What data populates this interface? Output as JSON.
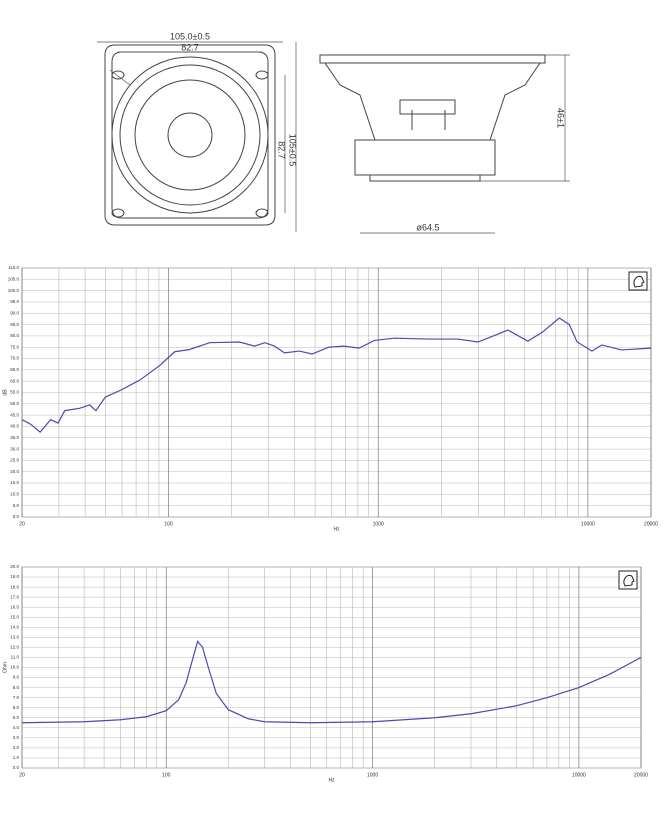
{
  "drawing": {
    "front_width": "105.0±0.5",
    "front_hole_spacing": "82.7",
    "front_hole_spacing_v": "82.7",
    "front_height": "105±0.5",
    "depth": "46±1",
    "magnet_dia": "ø64.5"
  },
  "chart_data": [
    {
      "type": "line",
      "title": null,
      "x_label": "Hz",
      "y_label": "dB",
      "log_x": true,
      "grid": true,
      "xlim": [
        20,
        20000
      ],
      "xticks": [
        20,
        100,
        1000,
        10000,
        20000
      ],
      "x_minor_grid": [
        30,
        40,
        50,
        60,
        70,
        80,
        90,
        200,
        300,
        400,
        500,
        600,
        700,
        800,
        900,
        2000,
        3000,
        4000,
        5000,
        6000,
        7000,
        8000,
        9000
      ],
      "ylim": [
        0,
        110
      ],
      "yticks": [
        {
          "value": 0,
          "label": "0.0"
        },
        {
          "value": 5,
          "label": "5.0"
        },
        {
          "value": 10,
          "label": "10.0"
        },
        {
          "value": 15,
          "label": "15.0"
        },
        {
          "value": 20,
          "label": "20.0"
        },
        {
          "value": 25,
          "label": "25.0"
        },
        {
          "value": 30,
          "label": "30.0"
        },
        {
          "value": 35,
          "label": "35.0"
        },
        {
          "value": 40,
          "label": "40.0"
        },
        {
          "value": 45,
          "label": "45.0"
        },
        {
          "value": 50,
          "label": "50.0"
        },
        {
          "value": 55,
          "label": "55.0"
        },
        {
          "value": 60,
          "label": "60.0"
        },
        {
          "value": 65,
          "label": "65.0"
        },
        {
          "value": 70,
          "label": "70.0"
        },
        {
          "value": 75,
          "label": "75.0"
        },
        {
          "value": 80,
          "label": "80.0"
        },
        {
          "value": 85,
          "label": "85.0"
        },
        {
          "value": 90,
          "label": "90.0"
        },
        {
          "value": 95,
          "label": "95.0"
        },
        {
          "value": 100,
          "label": "100.0"
        },
        {
          "value": 105,
          "label": "105.0"
        },
        {
          "value": 110,
          "label": "110.0"
        }
      ],
      "series": [
        {
          "name": "SPL",
          "color": "#4a4ab0",
          "x": [
            20,
            22,
            24.4,
            27.4,
            29.7,
            32,
            37.6,
            42,
            45,
            50,
            59,
            73,
            91,
            107,
            126,
            157,
            218,
            257,
            288,
            320,
            357,
            420,
            484,
            580,
            686,
            810,
            960,
            1190,
            1740,
            2400,
            2990,
            3540,
            4160,
            5170,
            6080,
            7310,
            8150,
            8890,
            10460,
            11650,
            14440,
            20000
          ],
          "values": [
            43,
            41,
            37.5,
            43,
            41.5,
            47,
            48,
            49.5,
            47,
            53,
            56,
            60.5,
            67,
            73,
            74,
            77,
            77.3,
            75.5,
            77,
            75.5,
            72.5,
            73.3,
            72,
            75,
            75.5,
            74.6,
            78,
            79,
            78.6,
            78.6,
            77.3,
            80,
            82.6,
            77.7,
            81.7,
            87.9,
            85,
            77.3,
            73.3,
            76,
            73.8,
            74.6
          ]
        }
      ]
    },
    {
      "type": "line",
      "title": null,
      "x_label": "Hz",
      "y_label": "Ohm",
      "log_x": true,
      "grid": true,
      "xlim": [
        20,
        20000
      ],
      "xticks": [
        20,
        100,
        1000,
        10000,
        20000
      ],
      "x_minor_grid": [
        30,
        40,
        50,
        60,
        70,
        80,
        90,
        200,
        300,
        400,
        500,
        600,
        700,
        800,
        900,
        2000,
        3000,
        4000,
        5000,
        6000,
        7000,
        8000,
        9000
      ],
      "ylim": [
        0,
        20
      ],
      "yticks": [
        {
          "value": 0,
          "label": "0.0"
        },
        {
          "value": 1,
          "label": "1.0"
        },
        {
          "value": 2,
          "label": "2.0"
        },
        {
          "value": 3,
          "label": "3.0"
        },
        {
          "value": 4,
          "label": "4.0"
        },
        {
          "value": 5,
          "label": "5.0"
        },
        {
          "value": 6,
          "label": "6.0"
        },
        {
          "value": 7,
          "label": "7.0"
        },
        {
          "value": 8,
          "label": "8.0"
        },
        {
          "value": 9,
          "label": "9.0"
        },
        {
          "value": 10,
          "label": "10.0"
        },
        {
          "value": 11,
          "label": "11.0"
        },
        {
          "value": 12,
          "label": "12.0"
        },
        {
          "value": 13,
          "label": "13.0"
        },
        {
          "value": 14,
          "label": "14.0"
        },
        {
          "value": 15,
          "label": "15.0"
        },
        {
          "value": 16,
          "label": "16.0"
        },
        {
          "value": 17,
          "label": "17.0"
        },
        {
          "value": 18,
          "label": "18.0"
        },
        {
          "value": 19,
          "label": "19.0"
        },
        {
          "value": 20,
          "label": "20.0"
        }
      ],
      "series": [
        {
          "name": "Impedance",
          "color": "#4a4ab0",
          "x": [
            20,
            40,
            60,
            80,
            100,
            115,
            125,
            135,
            142,
            150,
            160,
            175,
            200,
            250,
            300,
            500,
            1000,
            2000,
            3000,
            5000,
            7000,
            10000,
            14000,
            20000
          ],
          "values": [
            4.5,
            4.6,
            4.8,
            5.1,
            5.7,
            6.8,
            8.5,
            11.0,
            12.6,
            12.0,
            10.0,
            7.4,
            5.8,
            4.9,
            4.6,
            4.5,
            4.6,
            5.0,
            5.4,
            6.2,
            7.0,
            8.0,
            9.3,
            11.0
          ]
        }
      ]
    }
  ]
}
